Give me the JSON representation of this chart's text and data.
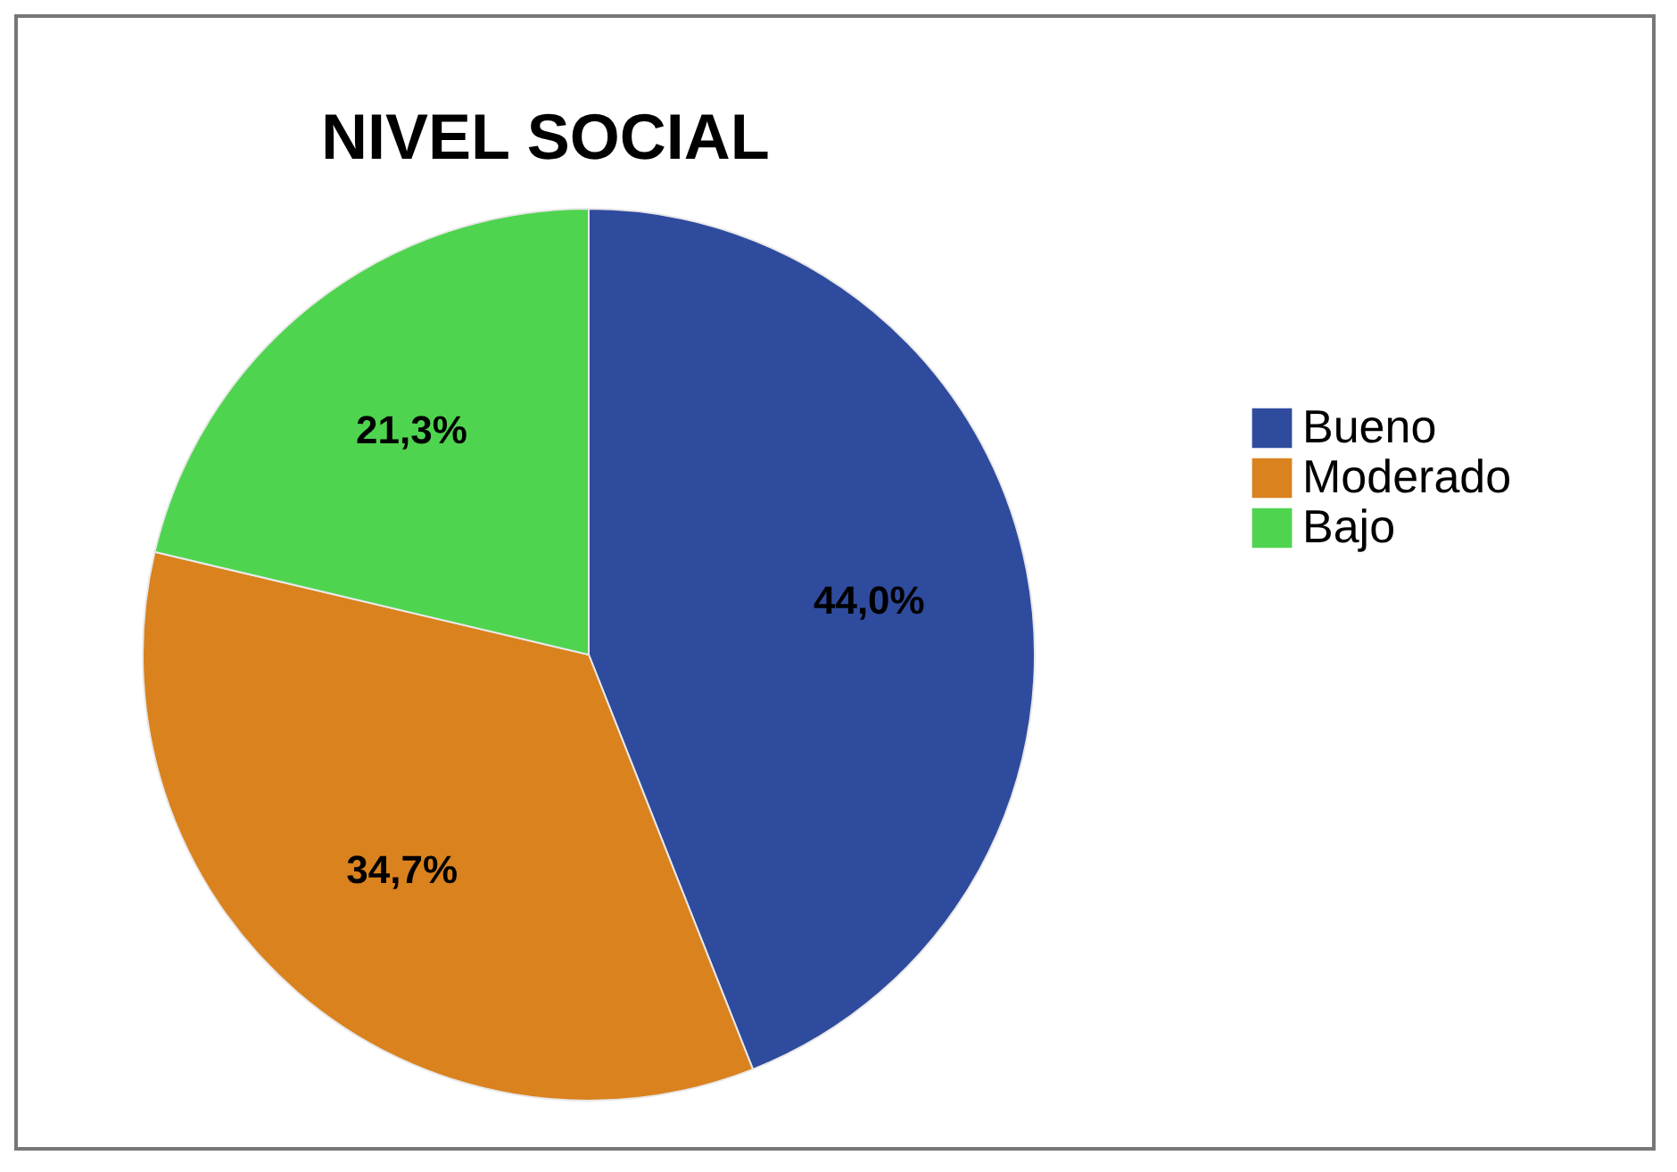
{
  "chart_data": {
    "type": "pie",
    "title": "NIVEL SOCIAL",
    "categories": [
      "Bueno",
      "Moderado",
      "Bajo"
    ],
    "values": [
      44.0,
      34.7,
      21.3
    ],
    "colors": [
      "#2f4b9e",
      "#d9821e",
      "#4fd44f"
    ],
    "value_labels": [
      "44,0%",
      "34,7%",
      "21,3%"
    ],
    "legend": "top right"
  }
}
